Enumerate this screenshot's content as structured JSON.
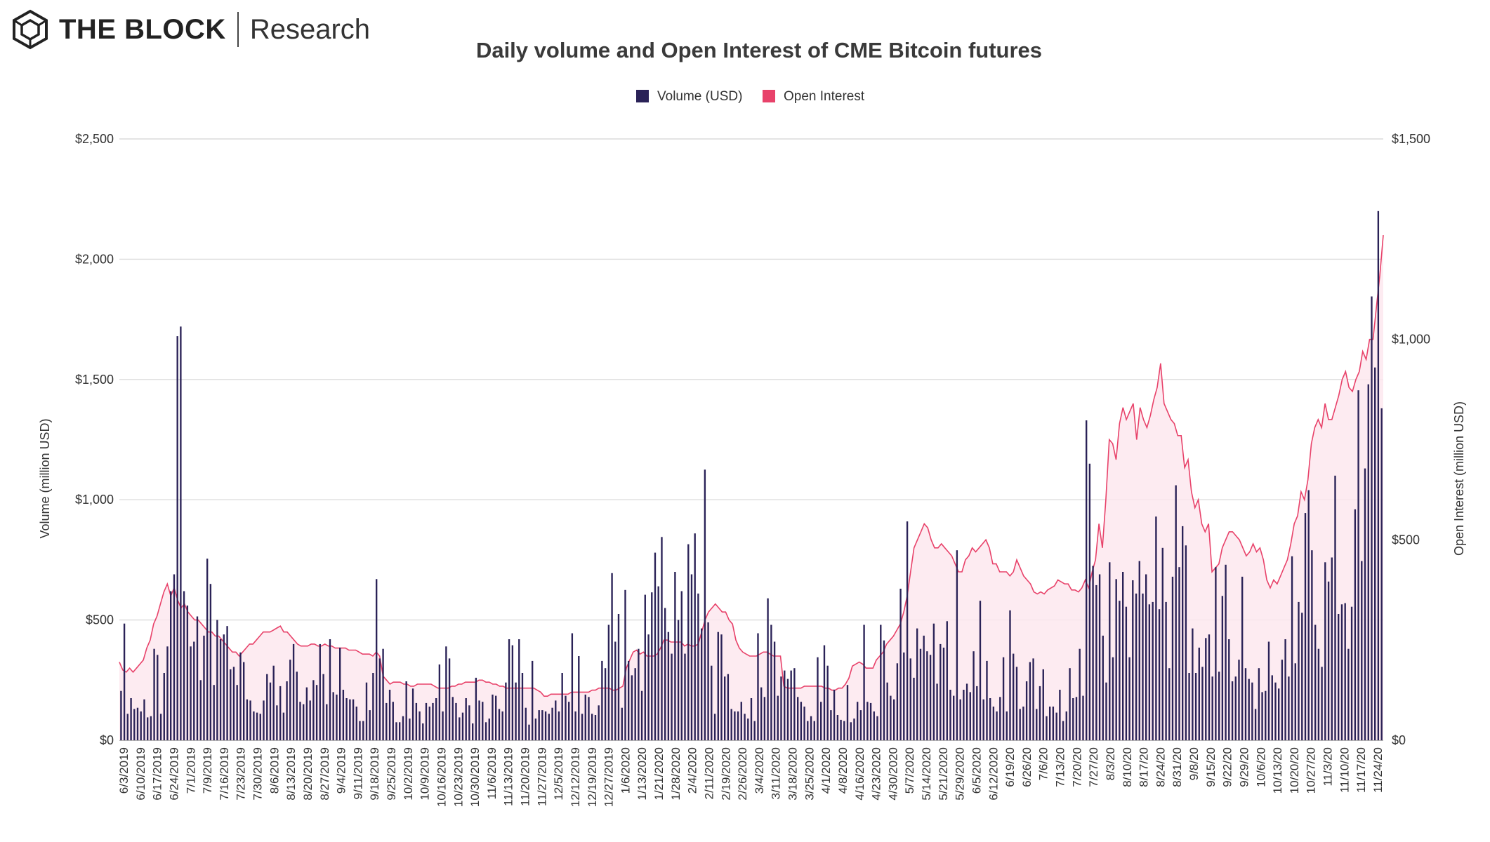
{
  "brand": {
    "name": "THE BLOCK",
    "sub": "Research",
    "logo_icon": "cube-hexagon-icon"
  },
  "chart_data": {
    "type": "bar+area",
    "title": "Daily volume and Open Interest of CME Bitcoin futures",
    "ylabel_left": "Volume (million USD)",
    "ylabel_right": "Open Interest (million USD)",
    "ylim_left": [
      0,
      2500
    ],
    "ylim_right": [
      0,
      1500
    ],
    "yticks_left": [
      "$0",
      "$500",
      "$1,000",
      "$1,500",
      "$2,000",
      "$2,500"
    ],
    "yticks_right": [
      "$0",
      "$500",
      "$1,000",
      "$1,500"
    ],
    "legend": {
      "placement": "top-center"
    },
    "grid": true,
    "x_tick_labels": [
      "6/3/2019",
      "6/10/2019",
      "6/17/2019",
      "6/24/2019",
      "7/1/2019",
      "7/9/2019",
      "7/16/2019",
      "7/23/2019",
      "7/30/2019",
      "8/6/2019",
      "8/13/2019",
      "8/20/2019",
      "8/27/2019",
      "9/4/2019",
      "9/11/2019",
      "9/18/2019",
      "9/25/2019",
      "10/2/2019",
      "10/9/2019",
      "10/16/2019",
      "10/23/2019",
      "10/30/2019",
      "11/6/2019",
      "11/13/2019",
      "11/20/2019",
      "11/27/2019",
      "12/5/2019",
      "12/12/2019",
      "12/19/2019",
      "12/27/2019",
      "1/6/2020",
      "1/13/2020",
      "1/21/2020",
      "1/28/2020",
      "2/4/2020",
      "2/11/2020",
      "2/19/2020",
      "2/26/2020",
      "3/4/2020",
      "3/11/2020",
      "3/18/2020",
      "3/25/2020",
      "4/1/2020",
      "4/8/2020",
      "4/16/2020",
      "4/23/2020",
      "4/30/2020",
      "5/7/2020",
      "5/14/2020",
      "5/21/2020",
      "5/29/2020",
      "6/5/2020",
      "6/12/2020",
      "6/19/20",
      "6/26/20",
      "7/6/20",
      "7/13/20",
      "7/20/20",
      "7/27/20",
      "8/3/20",
      "8/10/20",
      "8/17/20",
      "8/24/20",
      "8/31/20",
      "9/8/20",
      "9/15/20",
      "9/22/20",
      "9/29/20",
      "10/6/20",
      "10/13/20",
      "10/20/20",
      "10/27/20",
      "11/3/20",
      "11/10/20",
      "11/17/20",
      "11/24/20"
    ],
    "series": [
      {
        "name": "Volume (USD)",
        "type": "bar",
        "axis": "left",
        "color": "#2a2257",
        "values": [
          205,
          485,
          110,
          175,
          130,
          135,
          120,
          170,
          95,
          100,
          380,
          355,
          110,
          280,
          390,
          620,
          690,
          1680,
          1720,
          620,
          560,
          390,
          410,
          515,
          250,
          435,
          755,
          650,
          230,
          500,
          420,
          440,
          475,
          295,
          305,
          230,
          365,
          325,
          170,
          165,
          120,
          115,
          110,
          165,
          275,
          240,
          310,
          145,
          225,
          115,
          245,
          335,
          400,
          285,
          160,
          150,
          220,
          165,
          250,
          230,
          400,
          275,
          150,
          420,
          200,
          190,
          385,
          210,
          175,
          170,
          170,
          140,
          80,
          80,
          240,
          125,
          280,
          670,
          340,
          380,
          155,
          210,
          160,
          75,
          75,
          100,
          245,
          90,
          215,
          155,
          120,
          70,
          155,
          140,
          155,
          175,
          315,
          120,
          390,
          340,
          180,
          155,
          95,
          115,
          175,
          145,
          70,
          260,
          165,
          160,
          75,
          90,
          190,
          185,
          130,
          120,
          240,
          420,
          395,
          240,
          420,
          280,
          135,
          65,
          330,
          90,
          125,
          125,
          120,
          110,
          135,
          165,
          120,
          280,
          185,
          160,
          445,
          120,
          350,
          110,
          190,
          180,
          110,
          105,
          145,
          330,
          300,
          480,
          695,
          410,
          525,
          135,
          625,
          330,
          270,
          300,
          380,
          205,
          605,
          440,
          615,
          780,
          640,
          845,
          550,
          450,
          360,
          700,
          500,
          620,
          360,
          815,
          690,
          860,
          610,
          465,
          1125,
          490,
          310,
          110,
          450,
          440,
          265,
          275,
          130,
          120,
          120,
          160,
          110,
          90,
          175,
          80,
          445,
          220,
          180,
          590,
          480,
          410,
          185,
          265,
          290,
          255,
          290,
          300,
          180,
          160,
          140,
          80,
          100,
          80,
          345,
          160,
          395,
          310,
          125,
          210,
          105,
          85,
          80,
          230,
          75,
          90,
          160,
          125,
          480,
          160,
          155,
          120,
          100,
          480,
          415,
          240,
          185,
          170,
          320,
          630,
          365,
          910,
          340,
          260,
          465,
          380,
          435,
          370,
          355,
          485,
          235,
          400,
          385,
          495,
          210,
          185,
          790,
          170,
          210,
          235,
          200,
          370,
          225,
          580,
          170,
          330,
          175,
          140,
          120,
          180,
          345,
          120,
          540,
          360,
          305,
          130,
          140,
          245,
          325,
          340,
          130,
          225,
          295,
          100,
          140,
          140,
          115,
          210,
          80,
          120,
          300,
          175,
          180,
          380,
          185,
          1330,
          1150,
          725,
          645,
          690,
          435,
          240,
          740,
          345,
          670,
          580,
          700,
          555,
          345,
          665,
          610,
          745,
          610,
          690,
          565,
          575,
          930,
          545,
          800,
          575,
          300,
          680,
          1060,
          720,
          890,
          810,
          280,
          465,
          280,
          385,
          305,
          425,
          440,
          265,
          720,
          285,
          600,
          730,
          420,
          245,
          265,
          335,
          680,
          300,
          255,
          240,
          130,
          300,
          200,
          205,
          410,
          270,
          240,
          215,
          335,
          420,
          265,
          765,
          320,
          575,
          530,
          945,
          1040,
          790,
          480,
          380,
          305,
          740,
          660,
          760,
          1100,
          525,
          565,
          570,
          380,
          555,
          960,
          1455,
          745,
          1130,
          1480,
          1845,
          1550,
          2200,
          1380
        ]
      },
      {
        "name": "Open Interest",
        "type": "area",
        "axis": "right",
        "color": "#e8426a",
        "values": [
          195,
          175,
          170,
          180,
          170,
          180,
          190,
          200,
          230,
          250,
          290,
          310,
          340,
          370,
          390,
          360,
          380,
          350,
          330,
          340,
          320,
          310,
          300,
          300,
          290,
          280,
          270,
          270,
          260,
          260,
          250,
          240,
          230,
          220,
          220,
          210,
          220,
          230,
          240,
          240,
          250,
          260,
          270,
          270,
          270,
          275,
          280,
          285,
          270,
          270,
          260,
          250,
          240,
          235,
          235,
          235,
          240,
          240,
          235,
          235,
          240,
          235,
          235,
          230,
          230,
          230,
          230,
          225,
          225,
          225,
          220,
          215,
          215,
          215,
          210,
          220,
          210,
          160,
          150,
          140,
          145,
          145,
          145,
          140,
          140,
          135,
          135,
          140,
          140,
          140,
          140,
          140,
          135,
          130,
          130,
          130,
          130,
          135,
          135,
          140,
          140,
          145,
          145,
          145,
          145,
          150,
          150,
          145,
          145,
          140,
          140,
          135,
          135,
          130,
          130,
          130,
          130,
          130,
          130,
          130,
          130,
          130,
          125,
          120,
          110,
          110,
          115,
          115,
          115,
          115,
          115,
          115,
          120,
          120,
          120,
          120,
          120,
          120,
          125,
          125,
          130,
          130,
          130,
          130,
          125,
          125,
          130,
          135,
          180,
          200,
          220,
          225,
          215,
          220,
          210,
          210,
          210,
          215,
          230,
          250,
          250,
          245,
          245,
          245,
          245,
          235,
          240,
          235,
          235,
          240,
          270,
          300,
          320,
          330,
          340,
          330,
          320,
          320,
          300,
          290,
          250,
          230,
          220,
          215,
          210,
          210,
          210,
          215,
          220,
          220,
          215,
          210,
          210,
          210,
          135,
          130,
          130,
          130,
          130,
          130,
          135,
          135,
          135,
          135,
          135,
          135,
          130,
          130,
          125,
          125,
          130,
          130,
          140,
          155,
          185,
          190,
          195,
          190,
          180,
          180,
          180,
          200,
          210,
          220,
          240,
          250,
          260,
          275,
          290,
          320,
          360,
          420,
          480,
          500,
          520,
          540,
          530,
          500,
          480,
          480,
          490,
          480,
          470,
          460,
          440,
          420,
          420,
          450,
          460,
          480,
          470,
          480,
          490,
          500,
          480,
          440,
          440,
          420,
          420,
          420,
          410,
          420,
          450,
          430,
          410,
          400,
          390,
          370,
          365,
          370,
          365,
          375,
          380,
          385,
          400,
          395,
          390,
          390,
          375,
          375,
          370,
          380,
          400,
          380,
          420,
          450,
          540,
          480,
          600,
          750,
          740,
          700,
          790,
          830,
          800,
          820,
          840,
          750,
          830,
          800,
          780,
          810,
          850,
          880,
          940,
          840,
          820,
          800,
          790,
          760,
          760,
          680,
          700,
          620,
          580,
          600,
          540,
          520,
          540,
          420,
          430,
          440,
          480,
          500,
          520,
          520,
          510,
          500,
          480,
          460,
          470,
          490,
          470,
          480,
          450,
          400,
          380,
          400,
          390,
          410,
          430,
          450,
          490,
          540,
          560,
          620,
          600,
          650,
          740,
          780,
          800,
          780,
          840,
          800,
          800,
          830,
          860,
          900,
          920,
          880,
          870,
          900,
          920,
          970,
          950,
          1000,
          1000,
          1080,
          1160,
          1260
        ]
      }
    ]
  }
}
